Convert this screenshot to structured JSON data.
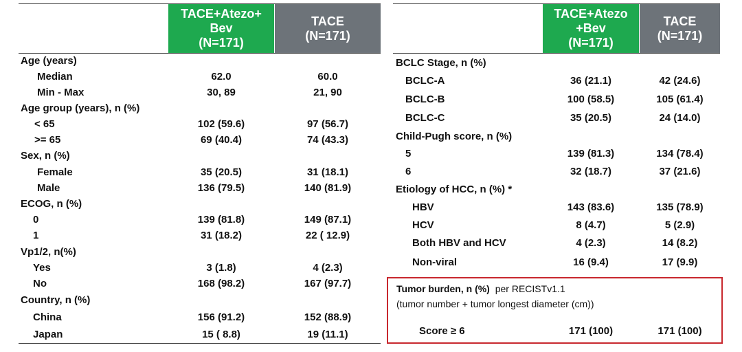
{
  "left_table": {
    "headers": {
      "col1": "TACE+Atezo+\nBev\n(N=171)",
      "col2": "TACE\n(N=171)"
    },
    "rows": [
      {
        "label": "Age (years)",
        "c1": "",
        "c2": "",
        "type": "section"
      },
      {
        "label": "Median",
        "c1": "62.0",
        "c2": "60.0",
        "type": "sub"
      },
      {
        "label": "Min - Max",
        "c1": "30, 89",
        "c2": "21, 90",
        "type": "sub"
      },
      {
        "label": "Age group (years), n (%)",
        "c1": "",
        "c2": "",
        "type": "section"
      },
      {
        "label": "< 65",
        "c1": "102 (59.6)",
        "c2": "97 (56.7)",
        "type": "sub"
      },
      {
        "label": ">= 65",
        "c1": "69 (40.4)",
        "c2": "74 (43.3)",
        "type": "sub"
      },
      {
        "label": "Sex, n (%)",
        "c1": "",
        "c2": "",
        "type": "section"
      },
      {
        "label": "Female",
        "c1": "35 (20.5)",
        "c2": "31 (18.1)",
        "type": "sub"
      },
      {
        "label": "Male",
        "c1": "136 (79.5)",
        "c2": "140 (81.9)",
        "type": "sub"
      },
      {
        "label": "ECOG, n (%)",
        "c1": "",
        "c2": "",
        "type": "section"
      },
      {
        "label": "0",
        "c1": "139 (81.8)",
        "c2": "149 (87.1)",
        "type": "sub"
      },
      {
        "label": "1",
        "c1": "31 (18.2)",
        "c2": "22 ( 12.9)",
        "type": "sub"
      },
      {
        "label": "Vp1/2, n(%)",
        "c1": "",
        "c2": "",
        "type": "section"
      },
      {
        "label": "Yes",
        "c1": "3 (1.8)",
        "c2": "4 (2.3)",
        "type": "sub"
      },
      {
        "label": "No",
        "c1": "168 (98.2)",
        "c2": "167 (97.7)",
        "type": "sub"
      },
      {
        "label": "Country, n (%)",
        "c1": "",
        "c2": "",
        "type": "section"
      },
      {
        "label": "China",
        "c1": "156 (91.2)",
        "c2": "152 (88.9)",
        "type": "sub"
      },
      {
        "label": "Japan",
        "c1": "15 ( 8.8)",
        "c2": "19 (11.1)",
        "type": "sub"
      }
    ]
  },
  "right_table": {
    "headers": {
      "col1": "TACE+Atezo\n+Bev\n(N=171)",
      "col2": "TACE\n(N=171)"
    },
    "rows": [
      {
        "label": "BCLC Stage, n (%)",
        "c1": "",
        "c2": "",
        "type": "section"
      },
      {
        "label": "BCLC-A",
        "c1": "36 (21.1)",
        "c2": "42 (24.6)",
        "type": "sub"
      },
      {
        "label": "BCLC-B",
        "c1": "100 (58.5)",
        "c2": "105 (61.4)",
        "type": "sub"
      },
      {
        "label": "BCLC-C",
        "c1": "35 (20.5)",
        "c2": "24 (14.0)",
        "type": "sub"
      },
      {
        "label": "Child-Pugh score, n (%)",
        "c1": "",
        "c2": "",
        "type": "section"
      },
      {
        "label": "5",
        "c1": "139 (81.3)",
        "c2": "134 (78.4)",
        "type": "sub"
      },
      {
        "label": "6",
        "c1": "32 (18.7)",
        "c2": "37 (21.6)",
        "type": "sub"
      },
      {
        "label": "Etiology of HCC, n (%) *",
        "c1": "",
        "c2": "",
        "type": "section"
      },
      {
        "label": "HBV",
        "c1": "143 (83.6)",
        "c2": "135 (78.9)",
        "type": "sub"
      },
      {
        "label": "HCV",
        "c1": "8 (4.7)",
        "c2": "5 (2.9)",
        "type": "sub"
      },
      {
        "label": "Both HBV and HCV",
        "c1": "4 (2.3)",
        "c2": "14 (8.2)",
        "type": "sub"
      },
      {
        "label": "Non-viral",
        "c1": "16 (9.4)",
        "c2": "17 (9.9)",
        "type": "sub"
      }
    ],
    "tumor_box": {
      "title_bold": "Tumor burden, n (%)",
      "title_rest": "per RECISTv1.1",
      "subtitle": "(tumor number + tumor longest diameter (cm))",
      "row_label": "Score ≥ 6",
      "c1": "171 (100)",
      "c2": "171 (100)"
    }
  }
}
